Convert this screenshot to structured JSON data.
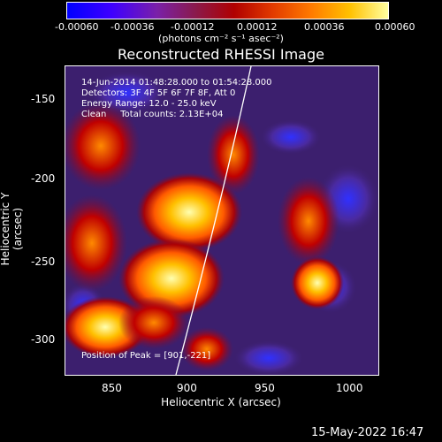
{
  "colorbar": {
    "ticks": [
      "-0.00060",
      "-0.00036",
      "-0.00012",
      "0.00012",
      "0.00036",
      "0.00060"
    ],
    "units": "(photons cm⁻² s⁻¹ asec⁻²)"
  },
  "title": "Reconstructed RHESSI Image",
  "annotations": {
    "time_range": "14-Jun-2014 01:48:28.000 to 01:54:28.000",
    "detectors": "Detectors: 3F 4F 5F 6F 7F 8F, Att 0",
    "energy": "Energy Range: 12.0 - 25.0 keV",
    "method": "Clean     Total counts: 2.13E+04",
    "peak": "Position of Peak = [901,-221]"
  },
  "axes": {
    "xlabel": "Heliocentric X (arcsec)",
    "ylabel": "Heliocentric Y (arcsec)",
    "xticks": [
      "850",
      "900",
      "950",
      "1000"
    ],
    "yticks": [
      "-150",
      "-200",
      "-250",
      "-300"
    ]
  },
  "footer": {
    "date": "15-May-2022 16:47"
  },
  "colors": {
    "background": "#000000",
    "text": "#ffffff",
    "limb": "#ffffff"
  }
}
